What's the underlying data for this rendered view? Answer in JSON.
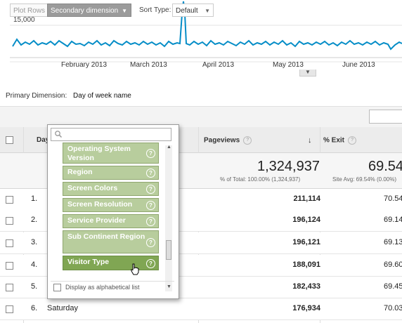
{
  "chart": {
    "y_tick": "15,000",
    "months": [
      "February 2013",
      "March 2013",
      "April 2013",
      "May 2013",
      "June 2013"
    ],
    "line_color": "#058dc7"
  },
  "primary_dimension": {
    "label": "Primary Dimension:",
    "value": "Day of week name"
  },
  "toolbar": {
    "plot_rows": "Plot Rows",
    "secondary_dimension": "Secondary dimension",
    "sort_type_label": "Sort Type:",
    "sort_type_value": "Default"
  },
  "table": {
    "col_day": "Day",
    "col_pageviews": "Pageviews",
    "col_exit": "% Exit",
    "summary_pageviews": "1,324,937",
    "summary_pageviews_sub": "% of Total: 100.00% (1,324,937)",
    "summary_exit": "69.54",
    "summary_exit_sub": "Site Avg: 69.54% (0.00%)",
    "rows": [
      {
        "n": "1.",
        "name": "",
        "pageviews": "211,114",
        "exit": "70.54"
      },
      {
        "n": "2.",
        "name": "",
        "pageviews": "196,124",
        "exit": "69.14"
      },
      {
        "n": "3.",
        "name": "",
        "pageviews": "196,121",
        "exit": "69.13"
      },
      {
        "n": "4.",
        "name": "",
        "pageviews": "188,091",
        "exit": "69.60"
      },
      {
        "n": "5.",
        "name": "",
        "pageviews": "182,433",
        "exit": "69.45"
      },
      {
        "n": "6.",
        "name": "Saturday",
        "pageviews": "176,934",
        "exit": "70.03"
      }
    ]
  },
  "dropdown": {
    "search_placeholder": "",
    "items": [
      "Operating System Version",
      "Region",
      "Screen Colors",
      "Screen Resolution",
      "Service Provider",
      "Sub Continent Region",
      "Visitor Type"
    ],
    "selected_item": "Visitor Type",
    "alphabetical_label": "Display as alphabetical list",
    "item_color": "#b8cd9d",
    "selected_color": "#80a653"
  }
}
